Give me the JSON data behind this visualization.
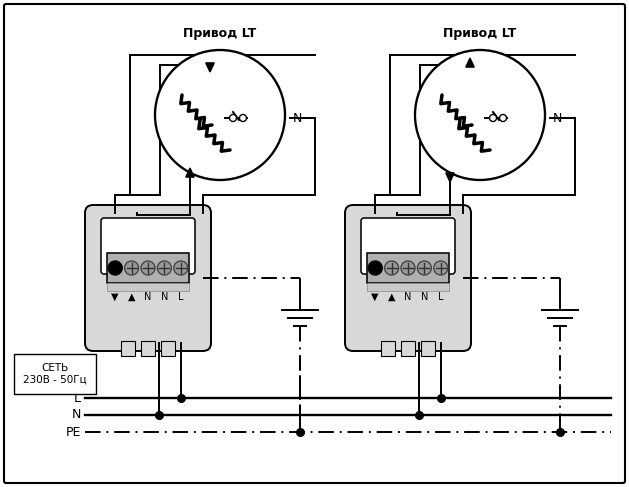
{
  "bg_color": "#ffffff",
  "border_color": "#000000",
  "line_color": "#000000",
  "motor1_label": "Привод LT",
  "motor2_label": "Привод LT",
  "net_label": "СЕТЬ\n230В - 50Гц",
  "L_label": "L",
  "N_label": "N",
  "PE_label": "PE",
  "figw": 6.29,
  "figh": 4.87,
  "dpi": 100
}
